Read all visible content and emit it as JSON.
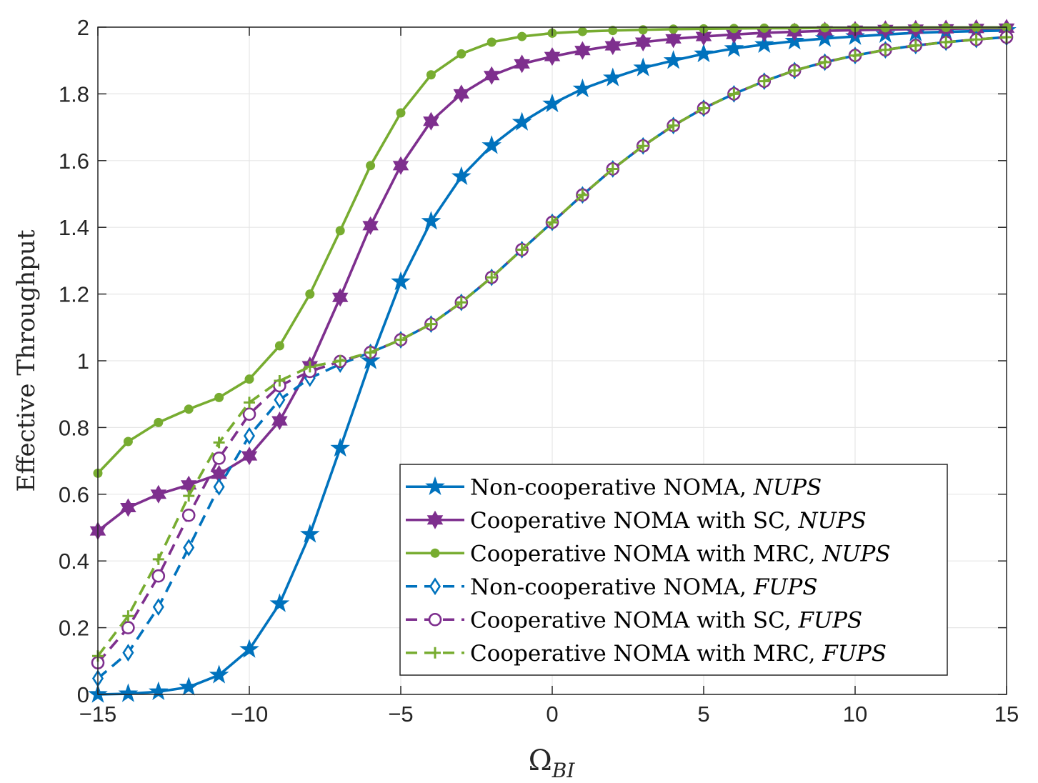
{
  "chart_data": {
    "type": "line",
    "title": "",
    "xlabel": "Ω",
    "xlabel_subscript": "BI",
    "ylabel": "Effective Throughput",
    "xlim": [
      -15,
      15
    ],
    "ylim": [
      0,
      2
    ],
    "xticks": [
      -15,
      -10,
      -5,
      0,
      5,
      10,
      15
    ],
    "xtick_labels": [
      "−15",
      "−10",
      "−5",
      "0",
      "5",
      "10",
      "15"
    ],
    "yticks": [
      0,
      0.2,
      0.4,
      0.6,
      0.8,
      1,
      1.2,
      1.4,
      1.6,
      1.8,
      2
    ],
    "ytick_labels": [
      "0",
      "0.2",
      "0.4",
      "0.6",
      "0.8",
      "1",
      "1.2",
      "1.4",
      "1.6",
      "1.8",
      "2"
    ],
    "grid": true,
    "legend_position": "bottom-right",
    "x": [
      -15,
      -14,
      -13,
      -12,
      -11,
      -10,
      -9,
      -8,
      -7,
      -6,
      -5,
      -4,
      -3,
      -2,
      -1,
      0,
      1,
      2,
      3,
      4,
      5,
      6,
      7,
      8,
      9,
      10,
      11,
      12,
      13,
      14,
      15
    ],
    "series": [
      {
        "name": "Non-cooperative NOMA, ",
        "scheme": "NUPS",
        "color": "#0072BD",
        "linestyle": "solid",
        "marker": "star",
        "values": [
          0.0,
          0.002,
          0.008,
          0.022,
          0.058,
          0.135,
          0.272,
          0.48,
          0.738,
          1.0,
          1.237,
          1.418,
          1.552,
          1.645,
          1.715,
          1.77,
          1.815,
          1.848,
          1.878,
          1.9,
          1.92,
          1.936,
          1.948,
          1.958,
          1.966,
          1.972,
          1.978,
          1.983,
          1.986,
          1.988,
          1.99
        ]
      },
      {
        "name": "Cooperative NOMA with SC, ",
        "scheme": "NUPS",
        "color": "#7E2F8E",
        "linestyle": "solid",
        "marker": "hexagram",
        "values": [
          0.49,
          0.56,
          0.6,
          0.628,
          0.66,
          0.715,
          0.82,
          0.985,
          1.19,
          1.405,
          1.585,
          1.718,
          1.8,
          1.855,
          1.89,
          1.912,
          1.93,
          1.944,
          1.955,
          1.965,
          1.972,
          1.978,
          1.983,
          1.986,
          1.989,
          1.991,
          1.993,
          1.994,
          1.995,
          1.996,
          1.997
        ]
      },
      {
        "name": "Cooperative NOMA with MRC, ",
        "scheme": "NUPS",
        "color": "#77AC30",
        "linestyle": "solid",
        "marker": "dot",
        "values": [
          0.663,
          0.758,
          0.815,
          0.855,
          0.89,
          0.945,
          1.045,
          1.2,
          1.39,
          1.585,
          1.743,
          1.857,
          1.92,
          1.955,
          1.972,
          1.982,
          1.987,
          1.99,
          1.992,
          1.994,
          1.995,
          1.996,
          1.997,
          1.997,
          1.998,
          1.998,
          1.998,
          1.999,
          1.999,
          1.999,
          1.999
        ]
      },
      {
        "name": "Non-cooperative NOMA, ",
        "scheme": "FUPS",
        "color": "#0072BD",
        "linestyle": "dashed",
        "marker": "diamond",
        "values": [
          0.048,
          0.125,
          0.262,
          0.44,
          0.622,
          0.775,
          0.883,
          0.948,
          0.99,
          1.025,
          1.063,
          1.11,
          1.175,
          1.25,
          1.333,
          1.415,
          1.497,
          1.575,
          1.644,
          1.705,
          1.757,
          1.8,
          1.838,
          1.87,
          1.895,
          1.915,
          1.932,
          1.945,
          1.955,
          1.963,
          1.97
        ]
      },
      {
        "name": "Cooperative NOMA with SC, ",
        "scheme": "FUPS",
        "color": "#7E2F8E",
        "linestyle": "dashed",
        "marker": "circle",
        "values": [
          0.095,
          0.2,
          0.355,
          0.537,
          0.708,
          0.84,
          0.925,
          0.968,
          0.998,
          1.025,
          1.063,
          1.11,
          1.175,
          1.25,
          1.333,
          1.415,
          1.497,
          1.575,
          1.644,
          1.705,
          1.757,
          1.8,
          1.838,
          1.87,
          1.895,
          1.915,
          1.932,
          1.945,
          1.955,
          1.963,
          1.97
        ]
      },
      {
        "name": "Cooperative NOMA with MRC, ",
        "scheme": "FUPS",
        "color": "#77AC30",
        "linestyle": "dashed",
        "marker": "plus",
        "values": [
          0.115,
          0.235,
          0.405,
          0.595,
          0.755,
          0.875,
          0.94,
          0.982,
          1.0,
          1.025,
          1.063,
          1.11,
          1.175,
          1.25,
          1.333,
          1.415,
          1.497,
          1.575,
          1.644,
          1.705,
          1.757,
          1.8,
          1.838,
          1.87,
          1.895,
          1.915,
          1.932,
          1.945,
          1.955,
          1.963,
          1.97
        ]
      }
    ]
  }
}
